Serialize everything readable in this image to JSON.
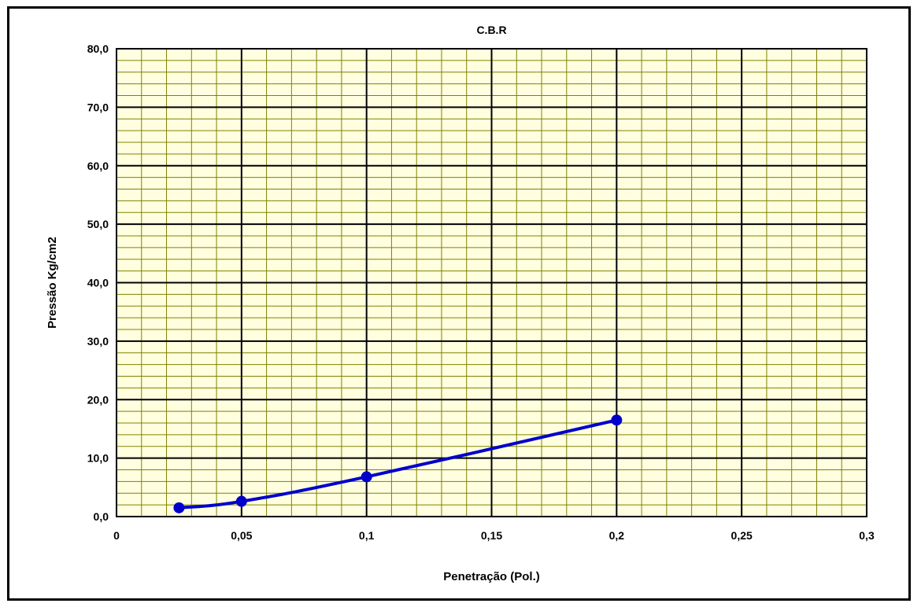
{
  "chart_data": {
    "type": "line",
    "title": "C.B.R",
    "xlabel": "Penetração (Pol.)",
    "ylabel": "Pressão Kg/cm2",
    "xlim": [
      0,
      0.3
    ],
    "ylim": [
      0,
      80
    ],
    "x_ticks": [
      "0",
      "0,05",
      "0,1",
      "0,15",
      "0,2",
      "0,25",
      "0,3"
    ],
    "x_tick_values": [
      0,
      0.05,
      0.1,
      0.15,
      0.2,
      0.25,
      0.3
    ],
    "y_ticks": [
      "0,0",
      "10,0",
      "20,0",
      "30,0",
      "40,0",
      "50,0",
      "60,0",
      "70,0",
      "80,0"
    ],
    "y_tick_values": [
      0,
      10,
      20,
      30,
      40,
      50,
      60,
      70,
      80
    ],
    "grid": true,
    "minor_grid_x_step": 0.01,
    "minor_grid_y_step": 2,
    "legend": "none",
    "series": [
      {
        "x": [
          0.025,
          0.05,
          0.1,
          0.2
        ],
        "y": [
          1.5,
          2.6,
          6.8,
          16.5
        ],
        "color": "#0000CC"
      }
    ],
    "colors": {
      "plot_background": "#FFFFE0",
      "major_grid": "#000000",
      "minor_grid": "#808000",
      "line": "#0000CC"
    }
  }
}
